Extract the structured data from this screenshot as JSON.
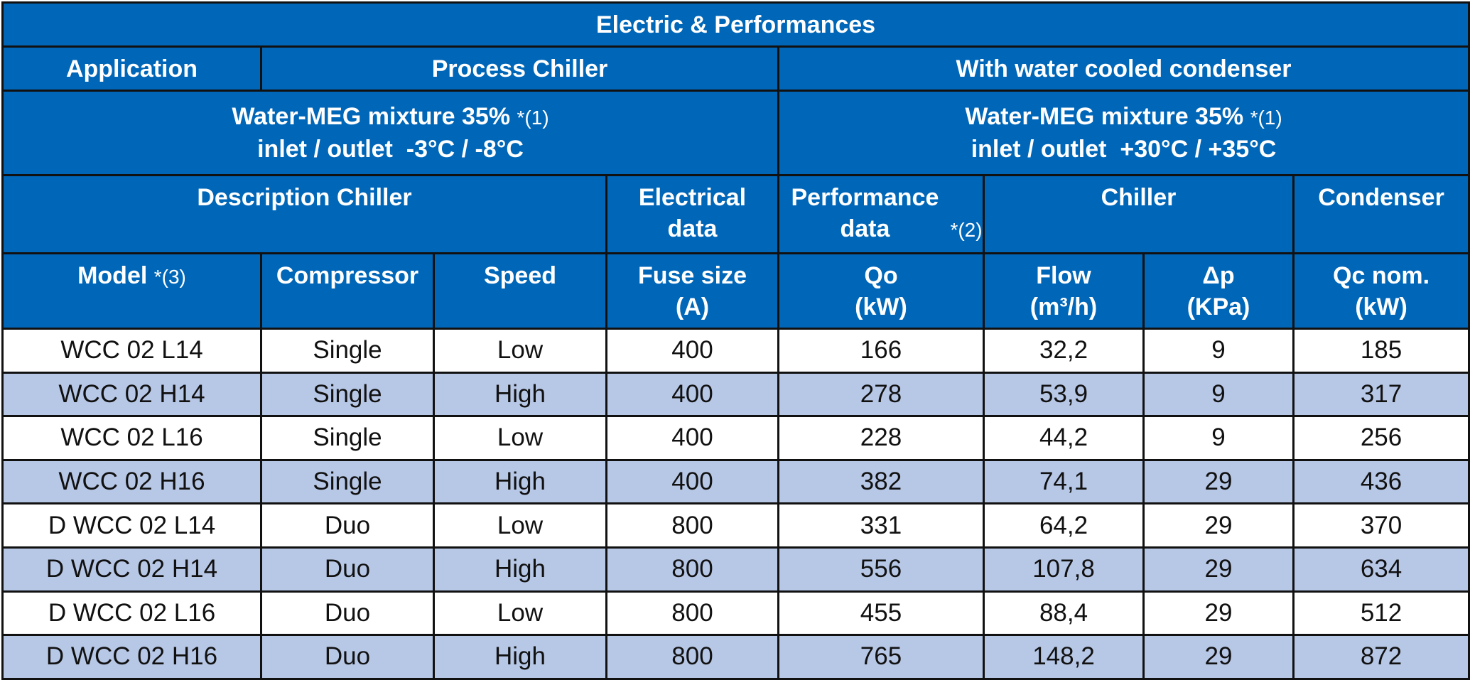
{
  "header": {
    "title": "Electric & Performances",
    "application_label": "Application",
    "process_label": "Process Chiller",
    "condenser_group_label": "With water cooled condenser",
    "left_conditions": {
      "fluid": "Water-MEG mixture 35%",
      "note": "*(1)",
      "temps": "inlet / outlet  -3°C / -8°C"
    },
    "right_conditions": {
      "fluid": "Water-MEG mixture 35%",
      "note": "*(1)",
      "temps": "inlet / outlet  +30°C / +35°C"
    },
    "groups": {
      "description": "Description Chiller",
      "electrical": "Electrical data",
      "performance": "Performance data",
      "performance_note": "*(2)",
      "chiller": "Chiller",
      "condenser": "Condenser"
    },
    "columns": {
      "model": "Model",
      "model_note": "*(3)",
      "compressor": "Compressor",
      "speed": "Speed",
      "fuse": "Fuse size",
      "fuse_unit": "(A)",
      "qo": "Qo",
      "qo_unit": "(kW)",
      "flow": "Flow",
      "flow_unit": "(m³/h)",
      "dp": "Δp",
      "dp_unit": "(KPa)",
      "qc": "Qc nom.",
      "qc_unit": "(kW)"
    }
  },
  "rows": [
    {
      "model": "WCC 02 L14",
      "compressor": "Single",
      "speed": "Low",
      "fuse": "400",
      "qo": "166",
      "flow": "32,2",
      "dp": "9",
      "qc": "185"
    },
    {
      "model": "WCC 02 H14",
      "compressor": "Single",
      "speed": "High",
      "fuse": "400",
      "qo": "278",
      "flow": "53,9",
      "dp": "9",
      "qc": "317"
    },
    {
      "model": "WCC 02 L16",
      "compressor": "Single",
      "speed": "Low",
      "fuse": "400",
      "qo": "228",
      "flow": "44,2",
      "dp": "9",
      "qc": "256"
    },
    {
      "model": "WCC 02 H16",
      "compressor": "Single",
      "speed": "High",
      "fuse": "400",
      "qo": "382",
      "flow": "74,1",
      "dp": "29",
      "qc": "436"
    },
    {
      "model": "D WCC 02 L14",
      "compressor": "Duo",
      "speed": "Low",
      "fuse": "800",
      "qo": "331",
      "flow": "64,2",
      "dp": "29",
      "qc": "370"
    },
    {
      "model": "D WCC 02 H14",
      "compressor": "Duo",
      "speed": "High",
      "fuse": "800",
      "qo": "556",
      "flow": "107,8",
      "dp": "29",
      "qc": "634"
    },
    {
      "model": "D WCC 02 L16",
      "compressor": "Duo",
      "speed": "Low",
      "fuse": "800",
      "qo": "455",
      "flow": "88,4",
      "dp": "29",
      "qc": "512"
    },
    {
      "model": "D WCC 02 H16",
      "compressor": "Duo",
      "speed": "High",
      "fuse": "800",
      "qo": "765",
      "flow": "148,2",
      "dp": "29",
      "qc": "872"
    }
  ],
  "colors": {
    "header_bg": "#0066b8",
    "header_text": "#ffffff",
    "row_alt_bg": "#b7c7e6",
    "row_bg": "#ffffff",
    "border": "#111111"
  }
}
